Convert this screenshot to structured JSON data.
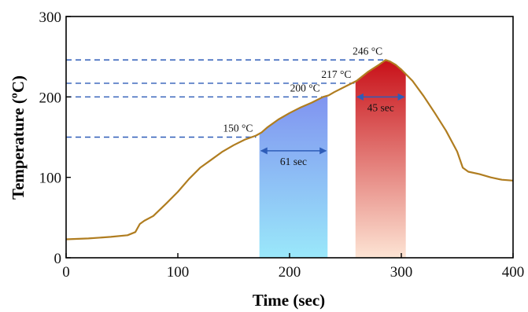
{
  "chart_data": {
    "type": "line",
    "title": "",
    "xlabel": "Time (sec)",
    "ylabel": "Temperature (ºC)",
    "xlim": [
      0,
      400
    ],
    "ylim": [
      0,
      300
    ],
    "x_ticks": [
      0,
      100,
      200,
      300,
      400
    ],
    "y_ticks": [
      0,
      100,
      200,
      300
    ],
    "grid": false,
    "legend": "none",
    "line_color": "#b07d20",
    "reference_line_color": "#2e5cb8",
    "series": [
      {
        "name": "",
        "x": [
          0,
          20,
          40,
          55,
          62,
          66,
          70,
          78,
          90,
          100,
          110,
          120,
          130,
          140,
          150,
          160,
          170,
          175,
          180,
          190,
          200,
          210,
          220,
          230,
          235,
          240,
          250,
          260,
          270,
          280,
          286,
          290,
          295,
          300,
          310,
          320,
          330,
          340,
          350,
          355,
          360,
          370,
          380,
          390,
          400
        ],
        "y": [
          23,
          24,
          26,
          28,
          32,
          42,
          46,
          52,
          68,
          82,
          98,
          112,
          122,
          132,
          140,
          147,
          152,
          156,
          162,
          172,
          180,
          187,
          193,
          200,
          202,
          206,
          213,
          220,
          231,
          240,
          246,
          244,
          240,
          234,
          220,
          201,
          180,
          158,
          132,
          112,
          107,
          104,
          100,
          97,
          96
        ]
      }
    ],
    "reference_lines": [
      {
        "y": 150,
        "x_end": 170,
        "label": "150 °C"
      },
      {
        "y": 200,
        "x_end": 230,
        "label": "200 °C"
      },
      {
        "y": 217,
        "x_end": 258,
        "label": "217 °C"
      },
      {
        "y": 246,
        "x_end": 286,
        "label": "246 °C"
      }
    ],
    "shaded_regions": [
      {
        "x_start": 173,
        "x_end": 234,
        "color_top": "#8093f0",
        "color_bottom": "#9ae8fa"
      },
      {
        "x_start": 259,
        "x_end": 304,
        "color_top": "#c81018",
        "color_bottom": "#fde4d4"
      }
    ],
    "interval_annotations": [
      {
        "x_start": 173,
        "x_end": 234,
        "y": 133,
        "label": "61 sec"
      },
      {
        "x_start": 259,
        "x_end": 304,
        "y": 200,
        "label": "45 sec"
      }
    ]
  }
}
